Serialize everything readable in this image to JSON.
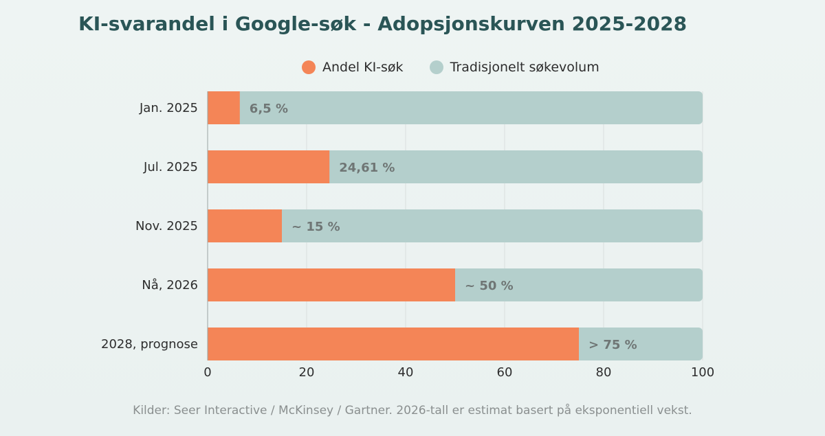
{
  "title": "KI-svarandel i Google-søk - Adopsjonskurven 2025-2028",
  "footer": "Kilder: Seer Interactive / McKinsey / Gartner. 2026-tall er estimat basert på eksponentiell vekst.",
  "colors": {
    "ai": "#f48557",
    "traditional": "#b4cfcc",
    "title": "#2a5556",
    "grid": "#d9dedd"
  },
  "chart_data": {
    "type": "bar",
    "orientation": "horizontal",
    "stacked": true,
    "title": "KI-svarandel i Google-søk - Adopsjonskurven 2025-2028",
    "categories": [
      "Jan. 2025",
      "Jul. 2025",
      "Nov. 2025",
      "Nå, 2026",
      "2028, prognose"
    ],
    "series": [
      {
        "name": "Andel KI-søk",
        "values": [
          6.5,
          24.61,
          15,
          50,
          75
        ]
      },
      {
        "name": "Tradisjonelt søkevolum",
        "values": [
          93.5,
          75.39,
          85,
          50,
          25
        ]
      }
    ],
    "data_labels": [
      "6,5 %",
      "24,61 %",
      "~ 15 %",
      "~ 50 %",
      "> 75 %"
    ],
    "xlim": [
      0,
      100
    ],
    "xticks": [
      "0",
      "20",
      "40",
      "60",
      "80",
      "100"
    ],
    "grid": true,
    "legend": "top"
  }
}
